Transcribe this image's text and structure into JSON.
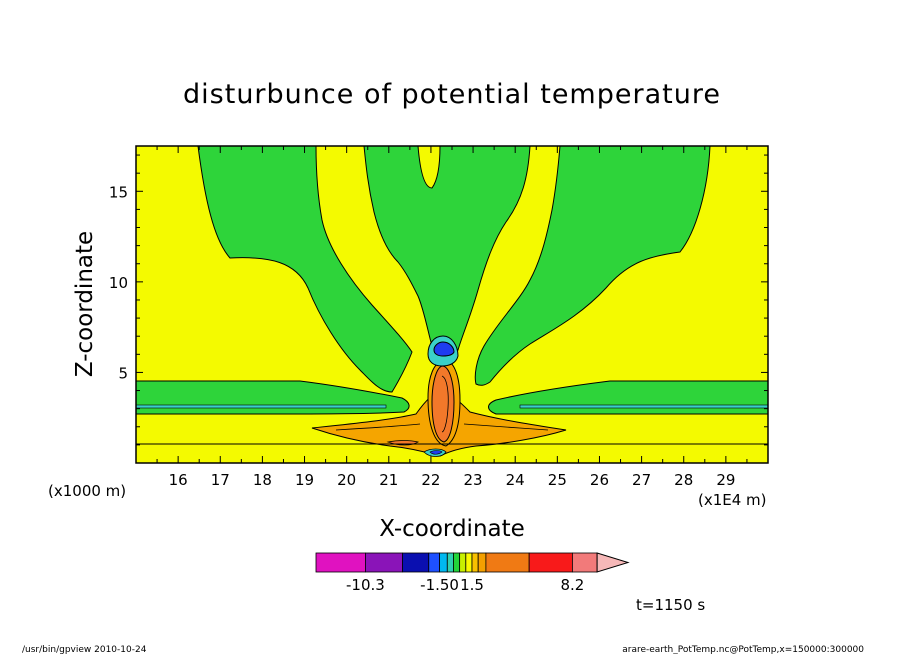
{
  "chart_data": {
    "type": "contour",
    "title": "disturbunce of potential temperature",
    "xlabel": "X-coordinate",
    "ylabel": "Z-coordinate",
    "x_unit_note": "(x1E4 m)",
    "y_unit_note": "(x1000 m)",
    "x_ticks": [
      "16",
      "17",
      "18",
      "19",
      "20",
      "21",
      "22",
      "23",
      "24",
      "25",
      "26",
      "27",
      "28",
      "29"
    ],
    "y_ticks": [
      "5",
      "10",
      "15"
    ],
    "xlim": [
      15,
      30
    ],
    "ylim": [
      0,
      17.5
    ],
    "colorbar": {
      "tick_labels": [
        "-10.3",
        "-1.50",
        "1.5",
        "8.2"
      ],
      "segments": [
        {
          "color": "#e012c0",
          "w": 0.16
        },
        {
          "color": "#8a14b8",
          "w": 0.12
        },
        {
          "color": "#0a0fb0",
          "w": 0.085
        },
        {
          "color": "#1e50ff",
          "w": 0.035
        },
        {
          "color": "#00b8f0",
          "w": 0.025
        },
        {
          "color": "#30d0b0",
          "w": 0.02
        },
        {
          "color": "#22d43a",
          "w": 0.02
        },
        {
          "color": "#c8f000",
          "w": 0.02
        },
        {
          "color": "#fafa00",
          "w": 0.02
        },
        {
          "color": "#f8c000",
          "w": 0.02
        },
        {
          "color": "#f4a000",
          "w": 0.025
        },
        {
          "color": "#f07a14",
          "w": 0.14
        },
        {
          "color": "#f81a1a",
          "w": 0.14
        },
        {
          "color": "#f27a7a",
          "w": 0.08
        },
        {
          "color": "#f6b8b8",
          "w": 0.1
        }
      ]
    },
    "annotation_time": "t=1150 s",
    "colors": {
      "background_level": "#f4fa00",
      "green_level": "#2ed43a",
      "orange_level": "#f5a500",
      "dark_orange_level": "#f2782a",
      "cyan_level": "#3ad0c8",
      "blue_level": "#1e3cf0"
    }
  },
  "footer": {
    "left": "/usr/bin/gpview   2010-10-24",
    "right": "arare-earth_PotTemp.nc@PotTemp,x=150000:300000"
  }
}
